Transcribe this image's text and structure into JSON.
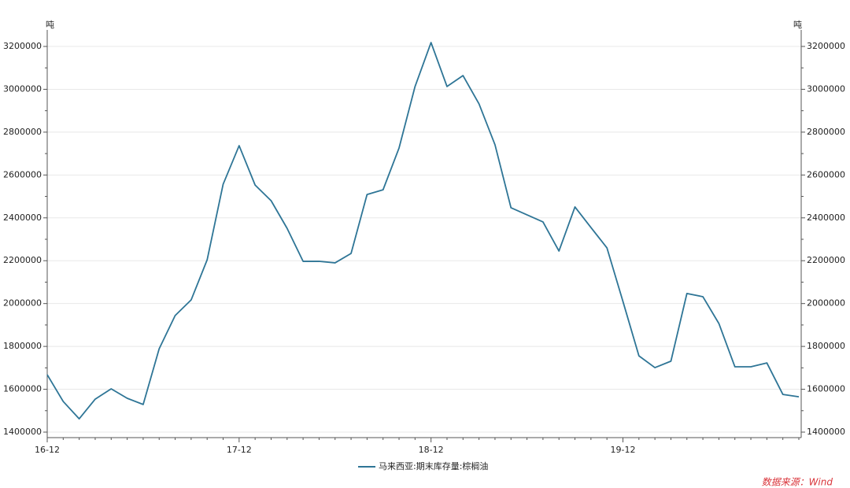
{
  "chart_data": {
    "type": "line",
    "y_unit": "吨",
    "y2_unit": "吨",
    "categories": [
      "16-12",
      null,
      null,
      null,
      null,
      null,
      null,
      null,
      null,
      null,
      null,
      null,
      "17-12",
      null,
      null,
      null,
      null,
      null,
      null,
      null,
      null,
      null,
      null,
      null,
      "18-12",
      null,
      null,
      null,
      null,
      null,
      null,
      null,
      null,
      null,
      null,
      null,
      "19-12",
      null,
      null,
      null,
      null,
      null,
      null,
      null,
      null,
      null,
      null,
      null
    ],
    "series": [
      {
        "name": "马来西亚:期末库存量:棕榈油",
        "color": "#2e7596",
        "values": [
          1668000,
          1543000,
          1462000,
          1554000,
          1602000,
          1558000,
          1529000,
          1789000,
          1944000,
          2017000,
          2204000,
          2557000,
          2737000,
          2553000,
          2480000,
          2351000,
          2197000,
          2197000,
          2190000,
          2234000,
          2509000,
          2531000,
          2726000,
          3013000,
          3218000,
          3013000,
          3064000,
          2932000,
          2741000,
          2447000,
          2414000,
          2381000,
          2245000,
          2451000,
          2355000,
          2260000,
          2010000,
          1756000,
          1701000,
          1731000,
          2047000,
          2032000,
          1907000,
          1705000,
          1705000,
          1723000,
          1576000,
          1565000
        ]
      }
    ],
    "ylim": [
      1400000,
      3200000
    ],
    "yticks": [
      1400000,
      1600000,
      1800000,
      2000000,
      2200000,
      2400000,
      2600000,
      2800000,
      3000000,
      3200000
    ],
    "y2lim": [
      1400000,
      3200000
    ],
    "y2ticks": [
      1400000,
      1600000,
      1800000,
      2000000,
      2200000,
      2400000,
      2600000,
      2800000,
      3000000,
      3200000
    ],
    "grid": true,
    "legend": "bottom",
    "source": "数据来源：Wind"
  }
}
